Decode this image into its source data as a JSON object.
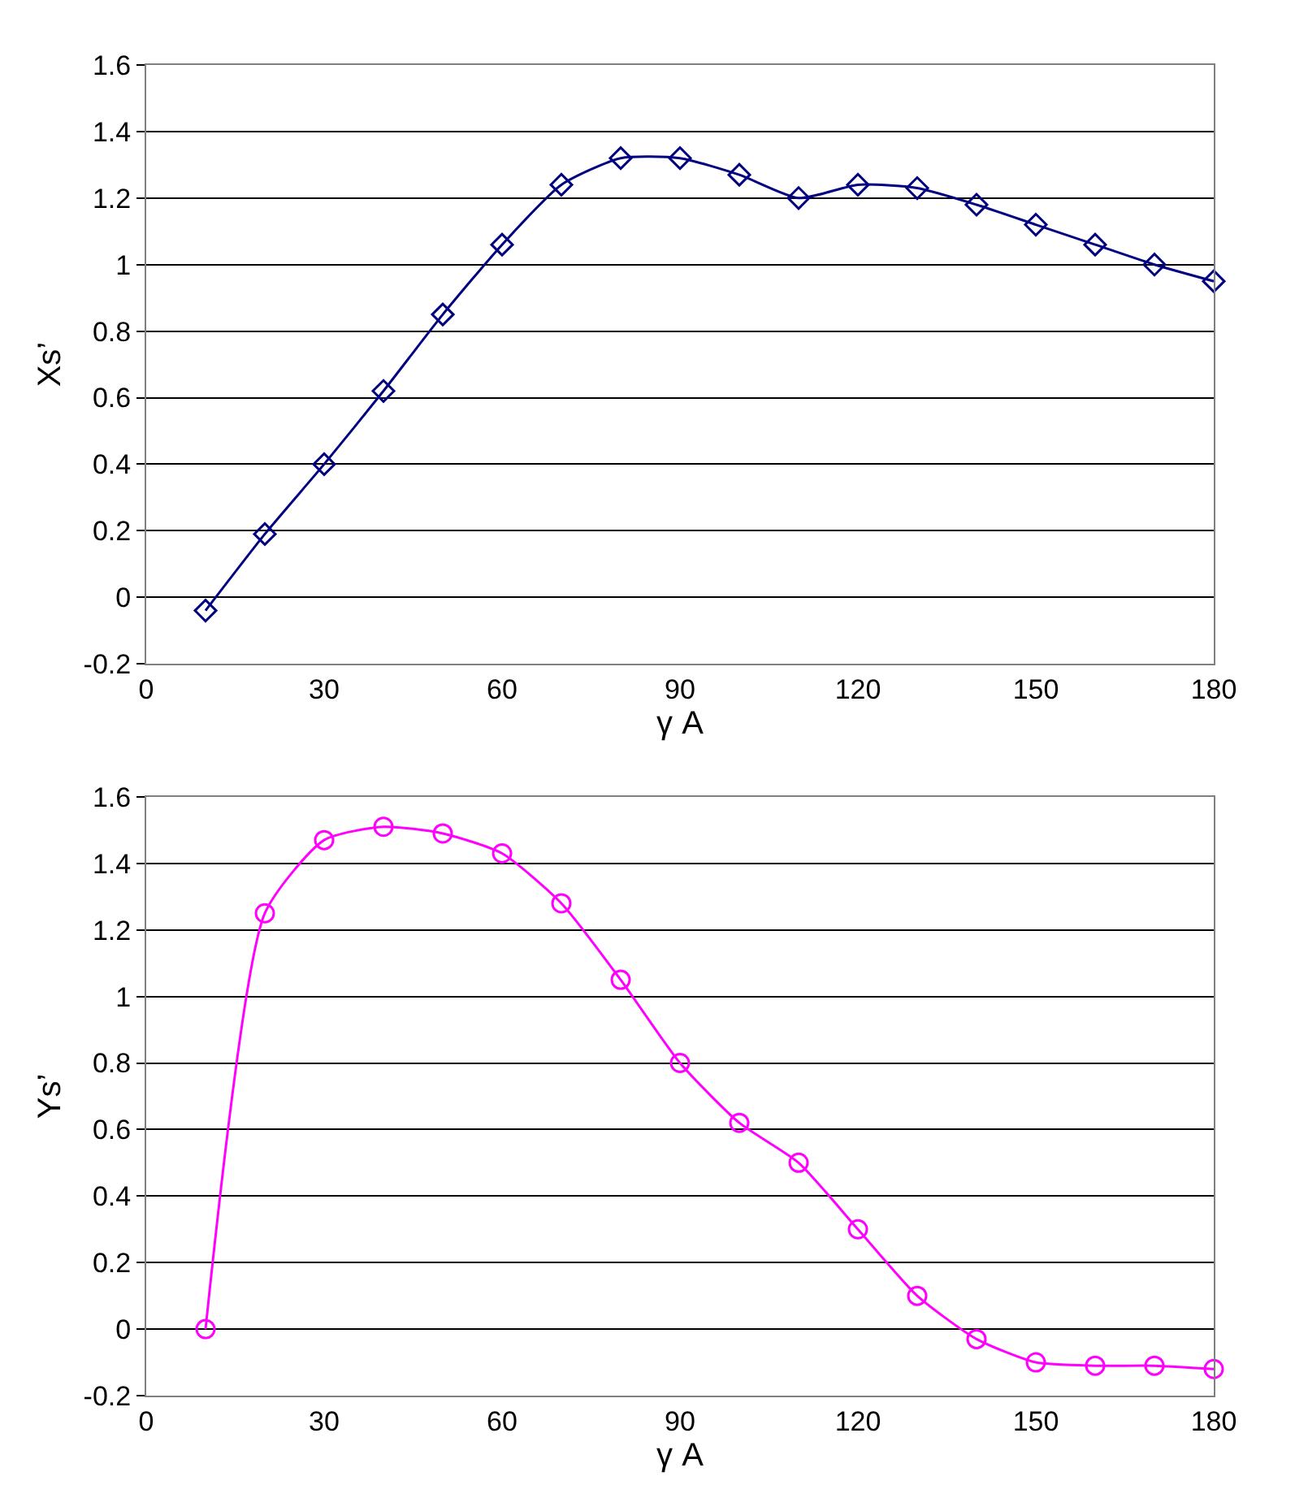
{
  "chart_data": [
    {
      "type": "line",
      "xlabel": "γ A",
      "ylabel": "Xs’",
      "x": [
        10,
        20,
        30,
        40,
        50,
        60,
        70,
        80,
        90,
        100,
        110,
        120,
        130,
        140,
        150,
        160,
        170,
        180
      ],
      "series": [
        {
          "color": "#000080",
          "values": [
            -0.04,
            0.19,
            0.4,
            0.62,
            0.85,
            1.06,
            1.24,
            1.32,
            1.32,
            1.27,
            1.2,
            1.24,
            1.23,
            1.18,
            1.12,
            1.06,
            1.0,
            0.95
          ]
        }
      ],
      "marker": "diamond",
      "line_style": "solid",
      "grid": "y",
      "xlim": [
        0,
        180
      ],
      "xticks": [
        0,
        30,
        60,
        90,
        120,
        150,
        180
      ],
      "ylim": [
        -0.2,
        1.6
      ],
      "yticks": [
        -0.2,
        0,
        0.2,
        0.4,
        0.6,
        0.8,
        1,
        1.2,
        1.4,
        1.6
      ]
    },
    {
      "type": "line",
      "xlabel": "γ A",
      "ylabel": "Ys’",
      "x": [
        10,
        20,
        30,
        40,
        50,
        60,
        70,
        80,
        90,
        100,
        110,
        120,
        130,
        140,
        150,
        160,
        170,
        180
      ],
      "series": [
        {
          "color": "#ff00ff",
          "values": [
            0,
            1.25,
            1.47,
            1.51,
            1.49,
            1.43,
            1.28,
            1.05,
            0.8,
            0.62,
            0.5,
            0.3,
            0.1,
            -0.03,
            -0.1,
            -0.11,
            -0.11,
            -0.12
          ]
        }
      ],
      "marker": "circle",
      "line_style": "solid",
      "grid": "y",
      "xlim": [
        0,
        180
      ],
      "xticks": [
        0,
        30,
        60,
        90,
        120,
        150,
        180
      ],
      "ylim": [
        -0.2,
        1.6
      ],
      "yticks": [
        -0.2,
        0,
        0.2,
        0.4,
        0.6,
        0.8,
        1,
        1.2,
        1.4,
        1.6
      ]
    }
  ]
}
